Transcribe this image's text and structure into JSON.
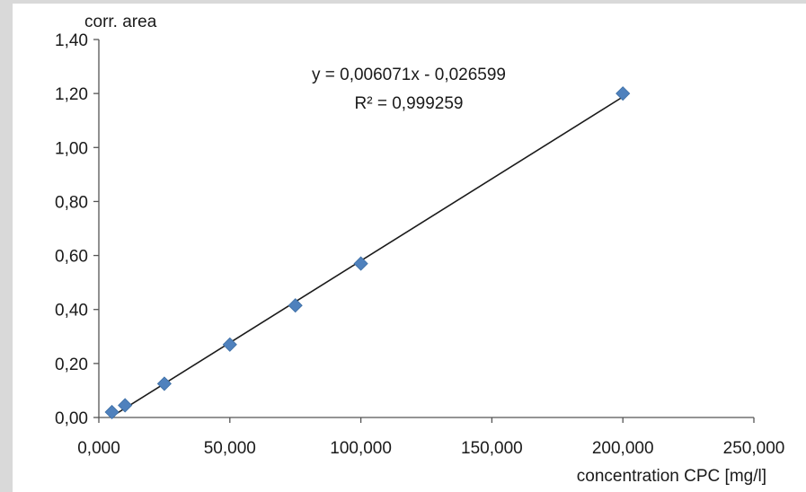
{
  "chart_data": {
    "type": "scatter",
    "ylabel": "corr. area",
    "xlabel": "concentration CPC [mg/l]",
    "xlim": [
      0,
      250000
    ],
    "ylim": [
      0,
      1.4
    ],
    "x_ticks": [
      0,
      50000,
      100000,
      150000,
      200000,
      250000
    ],
    "x_tick_labels": [
      "0,000",
      "50,000",
      "100,000",
      "150,000",
      "200,000",
      "250,000"
    ],
    "y_ticks": [
      0,
      0.2,
      0.4,
      0.6,
      0.8,
      1.0,
      1.2,
      1.4
    ],
    "y_tick_labels": [
      "0,00",
      "0,20",
      "0,40",
      "0,60",
      "0,80",
      "1,00",
      "1,20",
      "1,40"
    ],
    "grid": false,
    "marker": "diamond",
    "marker_color": "#4f81bd",
    "line_color": "#1a1a1a",
    "series": [
      {
        "x": [
          5000,
          10000,
          25000,
          50000,
          75000,
          100000,
          200000
        ],
        "y": [
          0.02,
          0.045,
          0.125,
          0.27,
          0.415,
          0.57,
          1.2
        ]
      }
    ],
    "trendline": {
      "type": "linear",
      "slope": 0.006071,
      "intercept": -0.026599,
      "x_range": [
        5000,
        200000
      ],
      "equation": "y = 0,006071x - 0,026599",
      "r_squared": "R² = 0,999259"
    }
  }
}
